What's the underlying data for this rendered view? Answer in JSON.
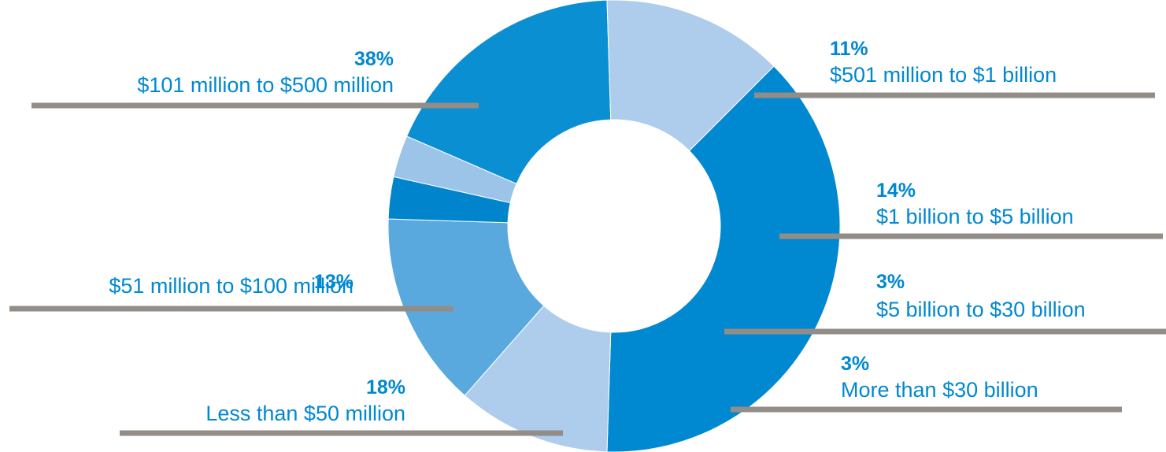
{
  "chart_data": {
    "type": "pie",
    "donut": true,
    "title": "",
    "slices": [
      {
        "label": "$101 million to $500 million",
        "value": 38,
        "percent_label": "38%",
        "color": "#0088D0"
      },
      {
        "label": "$501 million to $1 billion",
        "value": 11,
        "percent_label": "11%",
        "color": "#AECDEC"
      },
      {
        "label": "$1 billion to $5 billion",
        "value": 14,
        "percent_label": "14%",
        "color": "#5AA9DE"
      },
      {
        "label": "$5 billion to $30 billion",
        "value": 3,
        "percent_label": "3%",
        "color": "#0085CC"
      },
      {
        "label": "More than $30 billion",
        "value": 3,
        "percent_label": "3%",
        "color": "#9BC4E8"
      },
      {
        "label": "Less than $50 million",
        "value": 18,
        "percent_label": "18%",
        "color": "#0A8FD2"
      },
      {
        "label": "$51 million to $100 million",
        "value": 13,
        "percent_label": "13%",
        "color": "#AECDEC"
      }
    ],
    "text_color": "#0088D0",
    "leader_color": "#938D88"
  }
}
